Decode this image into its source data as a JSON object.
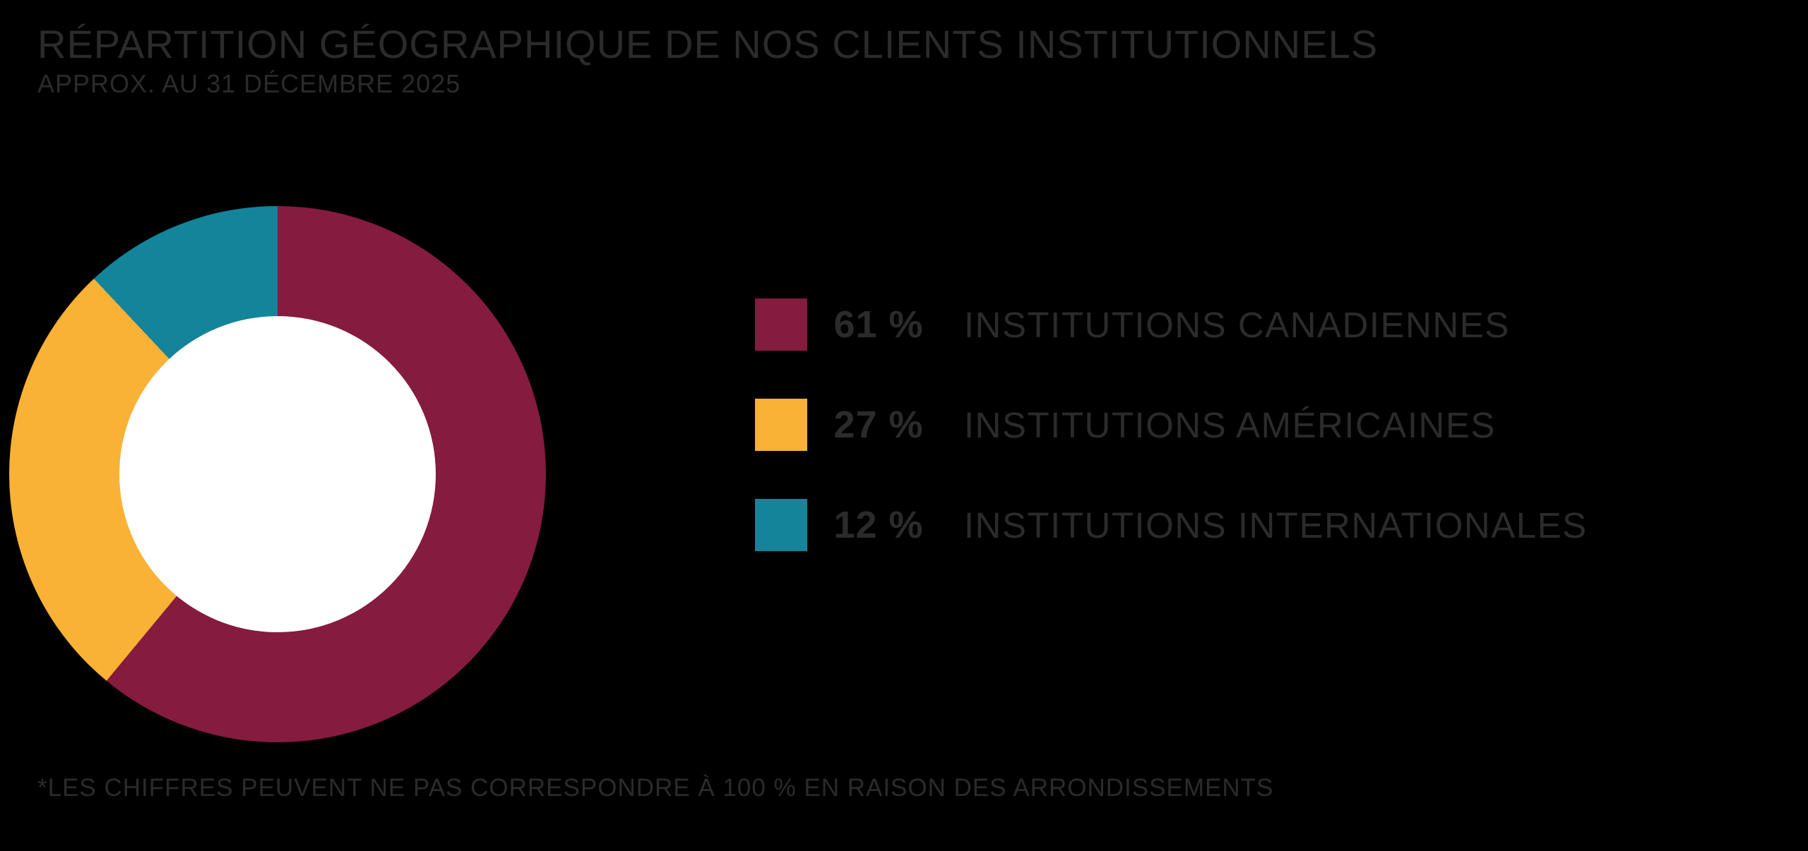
{
  "page": {
    "background_color": "#000000",
    "text_color": "#2B2B2B"
  },
  "header": {
    "title": "RÉPARTITION GÉOGRAPHIQUE DE NOS CLIENTS INSTITUTIONNELS",
    "subtitle": "APPROX. AU 31 DÉCEMBRE 2025"
  },
  "footnote": "*LES CHIFFRES PEUVENT NE PAS CORRESPONDRE À 100 % EN RAISON DES ARRONDISSEMENTS",
  "chart_data": {
    "type": "pie",
    "subtype": "donut",
    "title": "RÉPARTITION GÉOGRAPHIQUE DE NOS CLIENTS INSTITUTIONNELS",
    "subtitle": "APPROX. AU 31 DÉCEMBRE 2025",
    "start_angle_deg": 0,
    "direction": "clockwise",
    "hole_color": "#FFFFFF",
    "hole_ratio": 0.59,
    "legend_position": "right",
    "segments": [
      {
        "label": "INSTITUTIONS CANADIENNES",
        "value_pct": 61,
        "value_label": "61 %",
        "color": "#851B3F"
      },
      {
        "label": "INSTITUTIONS AMÉRICAINES",
        "value_pct": 27,
        "value_label": "27 %",
        "color": "#F9B235"
      },
      {
        "label": "INSTITUTIONS INTERNATIONALES",
        "value_pct": 12,
        "value_label": "12 %",
        "color": "#14849A"
      }
    ]
  }
}
